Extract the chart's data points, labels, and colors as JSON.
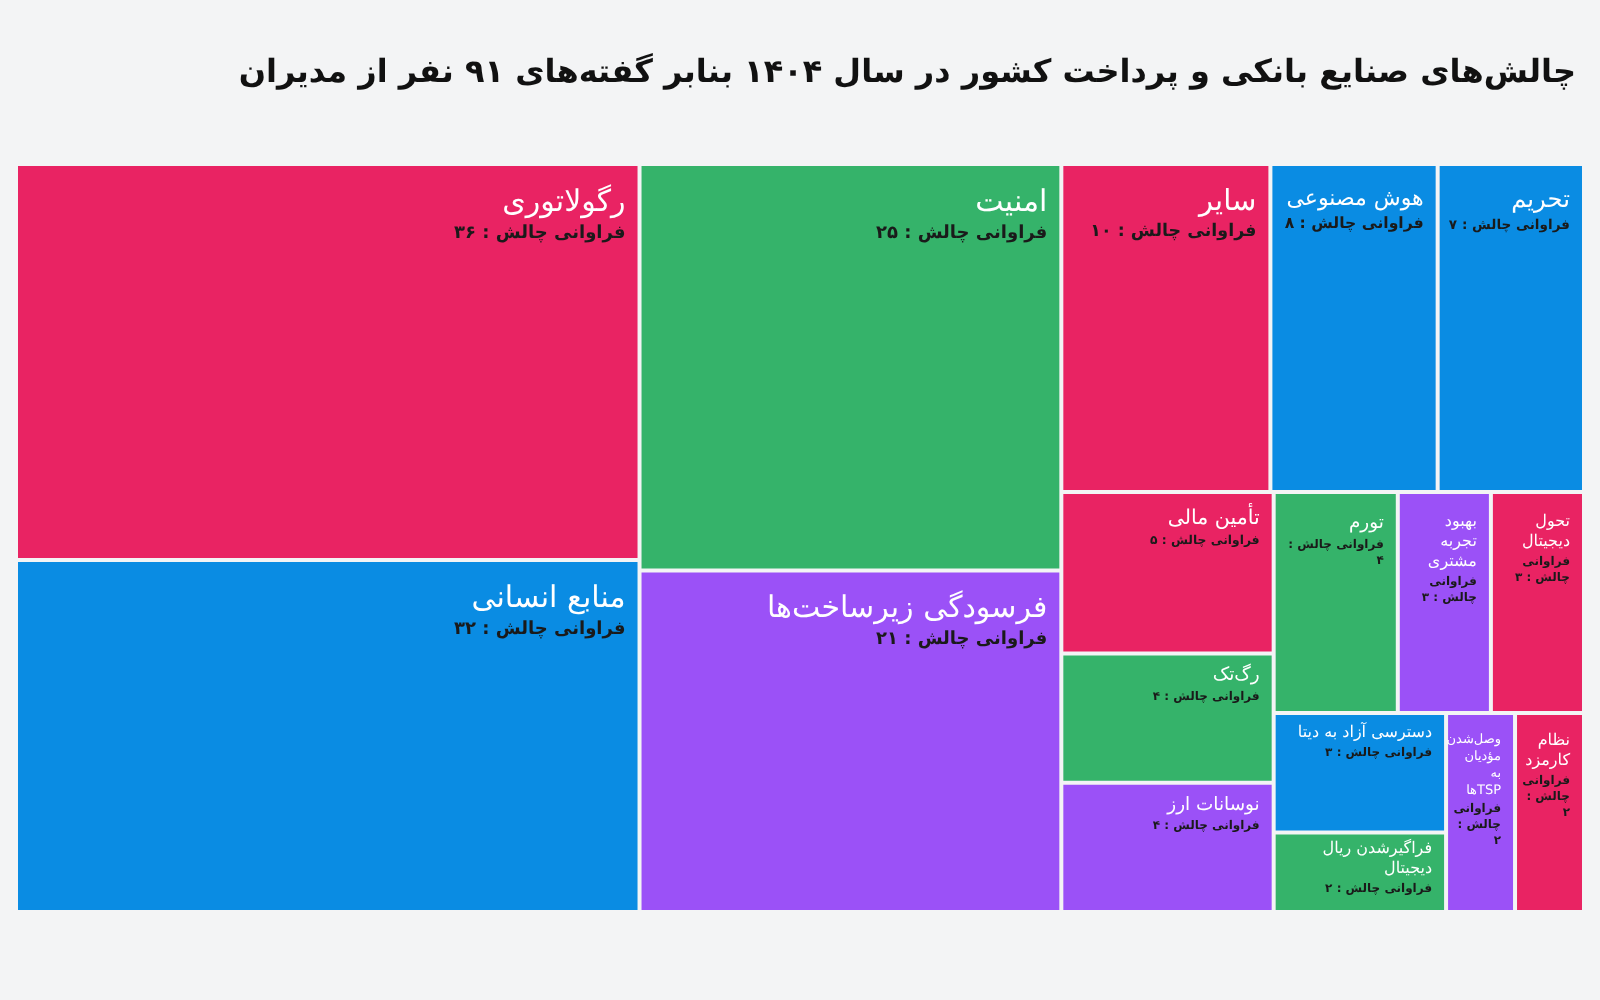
{
  "chart_data": {
    "type": "other",
    "title": "چالش‌های صنایع بانکی و پرداخت کشور در سال ۱۴۰۴ بنابر گفته‌های ۹۱ نفر از مدیران",
    "categories": [
      "رگولاتوری",
      "منابع انسانی",
      "امنیت",
      "فرسودگی زیرساخت‌ها",
      "سایر",
      "هوش مصنوعی",
      "تحریم",
      "تأمین مالی",
      "رگ‌تک",
      "نوسانات ارز",
      "تورم",
      "بهبود تجربه مشتری",
      "تحول دیجیتال",
      "دسترسی آزاد به دیتا",
      "فراگیرشدن ریال دیجیتال",
      "وصل‌شدن مؤدیان به TSPها",
      "نظام کارمزد"
    ],
    "values": [
      36,
      32,
      25,
      21,
      10,
      8,
      7,
      5,
      4,
      4,
      4,
      3,
      3,
      3,
      2,
      2,
      2
    ],
    "value_labels": [
      "فراوانی چالش : ۳۶",
      "فراوانی چالش : ۳۲",
      "فراوانی چالش : ۲۵",
      "فراوانی چالش : ۲۱",
      "فراوانی چالش : ۱۰",
      "فراوانی چالش : ۸",
      "فراوانی چالش : ۷",
      "فراوانی چالش : ۵",
      "فراوانی چالش : ۴",
      "فراوانی چالش : ۴",
      "فراوانی چالش : ۴",
      "فراوانی چالش : ۳",
      "فراوانی چالش : ۳",
      "فراوانی چالش : ۳",
      "فراوانی چالش : ۲",
      "فراوانی چالش : ۲",
      "فراوانی چالش : ۲"
    ],
    "colors": [
      "#e92363",
      "#0a8ce3",
      "#35b36a",
      "#9b51f7",
      "#e92363",
      "#0a8ce3",
      "#0a8ce3",
      "#e92363",
      "#35b36a",
      "#9b51f7",
      "#35b36a",
      "#9b51f7",
      "#e92363",
      "#0a8ce3",
      "#35b36a",
      "#9b51f7",
      "#e92363"
    ]
  }
}
